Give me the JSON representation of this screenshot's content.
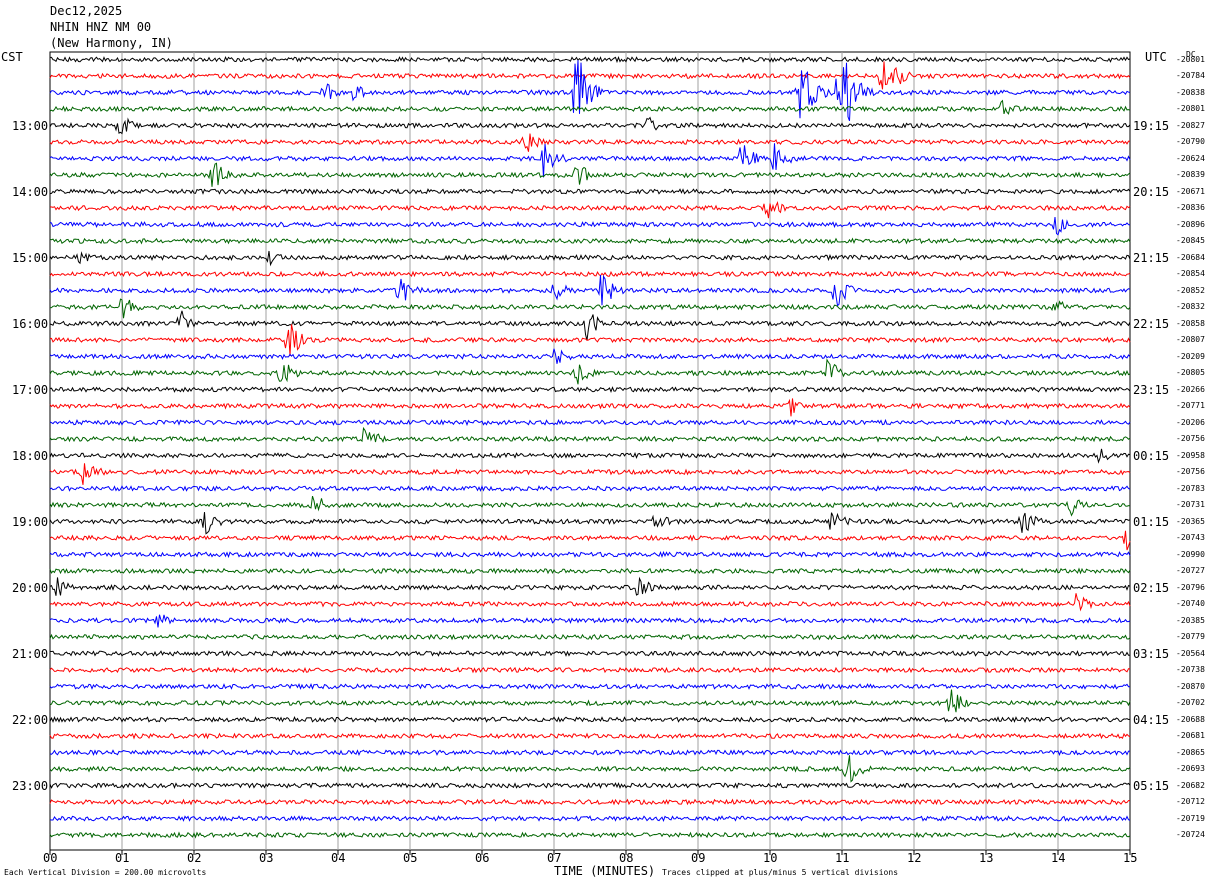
{
  "header": {
    "date": "Dec12,2025",
    "station": "NHIN HNZ NM 00",
    "location": "(New Harmony, IN)"
  },
  "corners": {
    "left": "CST",
    "right": "UTC",
    "dc": "DC"
  },
  "colors": {
    "cycle": [
      "#000000",
      "#ff0000",
      "#0000ff",
      "#006400"
    ],
    "grid": "#a0a0a0"
  },
  "footer": {
    "scale": "Each Vertical Division =  200.00 microvolts",
    "clip": "Traces clipped at plus/minus 5 vertical divisions"
  },
  "chart_data": {
    "type": "line",
    "xlabel": "TIME (MINUTES)",
    "x_ticks": [
      "00",
      "01",
      "02",
      "03",
      "04",
      "05",
      "06",
      "07",
      "08",
      "09",
      "10",
      "11",
      "12",
      "13",
      "14",
      "15"
    ],
    "xlim": [
      0,
      15
    ],
    "trace_count": 48,
    "left_time_labels": [
      "13:00",
      "14:00",
      "15:00",
      "16:00",
      "17:00",
      "18:00",
      "19:00",
      "20:00",
      "21:00",
      "22:00",
      "23:00"
    ],
    "right_time_labels": [
      "19:15",
      "20:15",
      "21:15",
      "22:15",
      "23:15",
      "00:15",
      "01:15",
      "02:15",
      "03:15",
      "04:15",
      "05:15"
    ],
    "dc_offsets": [
      "-20801",
      "-20784",
      "-20838",
      "-20801",
      "-20827",
      "-20790",
      "-20624",
      "-20839",
      "-20671",
      "-20836",
      "-20896",
      "-20845",
      "-20684",
      "-20854",
      "-20852",
      "-20832",
      "-20858",
      "-20807",
      "-20209",
      "-20805",
      "-20266",
      "-20771",
      "-20206",
      "-20756",
      "-20958",
      "-20756",
      "-20783",
      "-20731",
      "-20365",
      "-20743",
      "-20990",
      "-20727",
      "-20796",
      "-20740",
      "-20385",
      "-20779",
      "-20564",
      "-20738",
      "-20870",
      "-20702",
      "-20688",
      "-20681",
      "-20865",
      "-20693",
      "-20682",
      "-20712",
      "-20719",
      "-20724"
    ],
    "events": [
      {
        "trace": 2,
        "minute": 7.3,
        "amp": 48
      },
      {
        "trace": 2,
        "minute": 10.4,
        "amp": 45
      },
      {
        "trace": 2,
        "minute": 10.95,
        "amp": 40
      },
      {
        "trace": 2,
        "minute": 11.05,
        "amp": 44
      },
      {
        "trace": 1,
        "minute": 11.55,
        "amp": 40
      },
      {
        "trace": 2,
        "minute": 3.8,
        "amp": 12
      },
      {
        "trace": 2,
        "minute": 4.2,
        "amp": 12
      },
      {
        "trace": 3,
        "minute": 13.2,
        "amp": 14
      },
      {
        "trace": 4,
        "minute": 0.95,
        "amp": 14
      },
      {
        "trace": 4,
        "minute": 8.3,
        "amp": 10
      },
      {
        "trace": 5,
        "minute": 6.6,
        "amp": 14
      },
      {
        "trace": 6,
        "minute": 6.85,
        "amp": 22
      },
      {
        "trace": 6,
        "minute": 9.6,
        "amp": 18
      },
      {
        "trace": 6,
        "minute": 10.05,
        "amp": 18
      },
      {
        "trace": 7,
        "minute": 2.25,
        "amp": 18
      },
      {
        "trace": 7,
        "minute": 7.3,
        "amp": 16
      },
      {
        "trace": 9,
        "minute": 9.95,
        "amp": 16
      },
      {
        "trace": 10,
        "minute": 13.95,
        "amp": 14
      },
      {
        "trace": 12,
        "minute": 0.4,
        "amp": 9
      },
      {
        "trace": 12,
        "minute": 3.05,
        "amp": 10
      },
      {
        "trace": 14,
        "minute": 4.85,
        "amp": 18
      },
      {
        "trace": 14,
        "minute": 7.0,
        "amp": 14
      },
      {
        "trace": 14,
        "minute": 7.65,
        "amp": 20
      },
      {
        "trace": 14,
        "minute": 10.9,
        "amp": 20
      },
      {
        "trace": 15,
        "minute": 1.0,
        "amp": 14
      },
      {
        "trace": 15,
        "minute": 13.95,
        "amp": 10
      },
      {
        "trace": 16,
        "minute": 1.8,
        "amp": 16
      },
      {
        "trace": 16,
        "minute": 7.45,
        "amp": 18
      },
      {
        "trace": 17,
        "minute": 3.3,
        "amp": 22
      },
      {
        "trace": 18,
        "minute": 7.0,
        "amp": 12
      },
      {
        "trace": 19,
        "minute": 3.2,
        "amp": 16
      },
      {
        "trace": 19,
        "minute": 7.3,
        "amp": 14
      },
      {
        "trace": 19,
        "minute": 10.8,
        "amp": 16
      },
      {
        "trace": 21,
        "minute": 10.25,
        "amp": 14
      },
      {
        "trace": 23,
        "minute": 4.35,
        "amp": 18
      },
      {
        "trace": 24,
        "minute": 14.55,
        "amp": 10
      },
      {
        "trace": 25,
        "minute": 0.45,
        "amp": 18
      },
      {
        "trace": 27,
        "minute": 3.65,
        "amp": 14
      },
      {
        "trace": 28,
        "minute": 2.15,
        "amp": 14
      },
      {
        "trace": 28,
        "minute": 8.4,
        "amp": 12
      },
      {
        "trace": 28,
        "minute": 10.85,
        "amp": 14
      },
      {
        "trace": 28,
        "minute": 13.5,
        "amp": 16
      },
      {
        "trace": 29,
        "minute": 14.95,
        "amp": 22
      },
      {
        "trace": 27,
        "minute": 14.15,
        "amp": 14
      },
      {
        "trace": 32,
        "minute": 0.1,
        "amp": 14
      },
      {
        "trace": 32,
        "minute": 8.15,
        "amp": 14
      },
      {
        "trace": 33,
        "minute": 14.25,
        "amp": 12
      },
      {
        "trace": 34,
        "minute": 1.5,
        "amp": 10
      },
      {
        "trace": 39,
        "minute": 12.5,
        "amp": 16
      },
      {
        "trace": 43,
        "minute": 11.05,
        "amp": 20
      }
    ]
  }
}
